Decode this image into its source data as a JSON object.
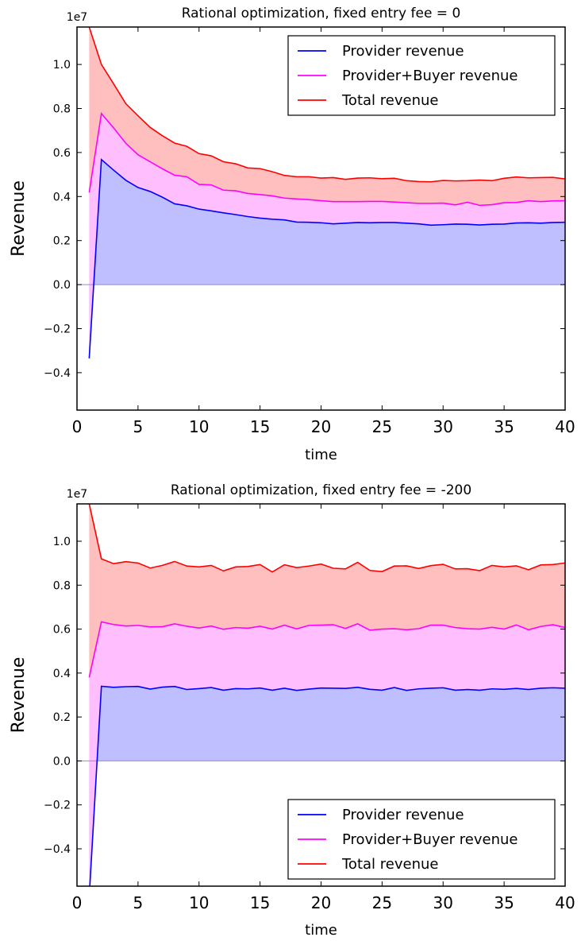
{
  "chart_data": [
    {
      "type": "area",
      "title": "Rational optimization, fixed entry fee = 0",
      "xlabel": "time",
      "ylabel": "Revenue",
      "y_scale_label": "1e7",
      "xlim": [
        0,
        40
      ],
      "ylim": [
        -0.57,
        1.17
      ],
      "y_units": "1e7",
      "x_ticks": [
        "0",
        "5",
        "10",
        "15",
        "20",
        "25",
        "30",
        "35",
        "40"
      ],
      "y_ticks": [
        "−0.4",
        "−0.2",
        "0.0",
        "0.2",
        "0.4",
        "0.6",
        "0.8",
        "1.0"
      ],
      "legend_position": "top-right",
      "stacked_fill": true,
      "x": [
        1,
        2,
        3,
        4,
        5,
        6,
        7,
        8,
        9,
        10,
        11,
        12,
        13,
        14,
        15,
        16,
        17,
        18,
        19,
        20,
        21,
        22,
        23,
        24,
        25,
        26,
        27,
        28,
        29,
        30,
        31,
        32,
        33,
        34,
        35,
        36,
        37,
        38,
        39,
        40
      ],
      "series": [
        {
          "name": "Provider revenue",
          "color": "#0000ff",
          "fill": "#bfbfff",
          "values": [
            -0.335,
            0.568,
            0.52,
            0.474,
            0.441,
            0.423,
            0.397,
            0.367,
            0.358,
            0.343,
            0.335,
            0.326,
            0.318,
            0.309,
            0.302,
            0.297,
            0.294,
            0.284,
            0.283,
            0.281,
            0.276,
            0.279,
            0.282,
            0.281,
            0.282,
            0.282,
            0.279,
            0.276,
            0.27,
            0.272,
            0.275,
            0.274,
            0.271,
            0.274,
            0.275,
            0.28,
            0.281,
            0.279,
            0.282,
            0.283
          ]
        },
        {
          "name": "Provider+Buyer revenue",
          "color": "#ff00ff",
          "fill": "#ffbfff",
          "values": [
            0.418,
            0.777,
            0.712,
            0.642,
            0.59,
            0.558,
            0.526,
            0.497,
            0.49,
            0.455,
            0.453,
            0.429,
            0.426,
            0.414,
            0.409,
            0.403,
            0.393,
            0.389,
            0.386,
            0.381,
            0.377,
            0.377,
            0.377,
            0.378,
            0.378,
            0.375,
            0.372,
            0.369,
            0.369,
            0.37,
            0.362,
            0.374,
            0.36,
            0.363,
            0.372,
            0.373,
            0.381,
            0.377,
            0.38,
            0.381
          ]
        },
        {
          "name": "Total revenue",
          "color": "#ff0000",
          "fill": "#ffbfbf",
          "values": [
            1.17,
            1.0,
            0.912,
            0.822,
            0.767,
            0.714,
            0.676,
            0.643,
            0.628,
            0.595,
            0.585,
            0.558,
            0.549,
            0.53,
            0.527,
            0.513,
            0.496,
            0.49,
            0.49,
            0.484,
            0.486,
            0.478,
            0.484,
            0.485,
            0.481,
            0.483,
            0.472,
            0.468,
            0.467,
            0.473,
            0.471,
            0.472,
            0.475,
            0.472,
            0.483,
            0.489,
            0.485,
            0.486,
            0.487,
            0.48
          ]
        }
      ]
    },
    {
      "type": "area",
      "title": "Rational optimization, fixed entry fee = -200",
      "xlabel": "time",
      "ylabel": "Revenue",
      "y_scale_label": "1e7",
      "xlim": [
        0,
        40
      ],
      "ylim": [
        -0.57,
        1.17
      ],
      "y_units": "1e7",
      "x_ticks": [
        "0",
        "5",
        "10",
        "15",
        "20",
        "25",
        "30",
        "35",
        "40"
      ],
      "y_ticks": [
        "−0.4",
        "−0.2",
        "0.0",
        "0.2",
        "0.4",
        "0.6",
        "0.8",
        "1.0"
      ],
      "legend_position": "bottom-right",
      "stacked_fill": true,
      "x": [
        1,
        2,
        3,
        4,
        5,
        6,
        7,
        8,
        9,
        10,
        11,
        12,
        13,
        14,
        15,
        16,
        17,
        18,
        19,
        20,
        21,
        22,
        23,
        24,
        25,
        26,
        27,
        28,
        29,
        30,
        31,
        32,
        33,
        34,
        35,
        36,
        37,
        38,
        39,
        40
      ],
      "series": [
        {
          "name": "Provider revenue",
          "color": "#0000ff",
          "fill": "#bfbfff",
          "values": [
            -0.62,
            0.34,
            0.335,
            0.338,
            0.339,
            0.327,
            0.336,
            0.339,
            0.325,
            0.329,
            0.334,
            0.322,
            0.329,
            0.328,
            0.332,
            0.322,
            0.331,
            0.321,
            0.327,
            0.332,
            0.331,
            0.33,
            0.335,
            0.326,
            0.322,
            0.334,
            0.321,
            0.328,
            0.331,
            0.333,
            0.322,
            0.325,
            0.322,
            0.328,
            0.326,
            0.33,
            0.325,
            0.331,
            0.333,
            0.331
          ]
        },
        {
          "name": "Provider+Buyer revenue",
          "color": "#ff00ff",
          "fill": "#ffbfff",
          "values": [
            0.38,
            0.633,
            0.621,
            0.614,
            0.617,
            0.61,
            0.611,
            0.624,
            0.613,
            0.605,
            0.614,
            0.599,
            0.607,
            0.604,
            0.613,
            0.6,
            0.618,
            0.601,
            0.617,
            0.618,
            0.62,
            0.603,
            0.624,
            0.595,
            0.6,
            0.602,
            0.597,
            0.602,
            0.618,
            0.618,
            0.607,
            0.602,
            0.6,
            0.608,
            0.6,
            0.619,
            0.597,
            0.612,
            0.62,
            0.607
          ]
        },
        {
          "name": "Total revenue",
          "color": "#ff0000",
          "fill": "#ffbfbf",
          "values": [
            1.17,
            0.92,
            0.898,
            0.907,
            0.901,
            0.878,
            0.89,
            0.908,
            0.887,
            0.883,
            0.89,
            0.865,
            0.883,
            0.885,
            0.894,
            0.86,
            0.893,
            0.88,
            0.887,
            0.896,
            0.877,
            0.874,
            0.904,
            0.867,
            0.862,
            0.887,
            0.888,
            0.876,
            0.889,
            0.895,
            0.874,
            0.875,
            0.866,
            0.89,
            0.883,
            0.888,
            0.87,
            0.892,
            0.894,
            0.901
          ]
        }
      ]
    }
  ]
}
